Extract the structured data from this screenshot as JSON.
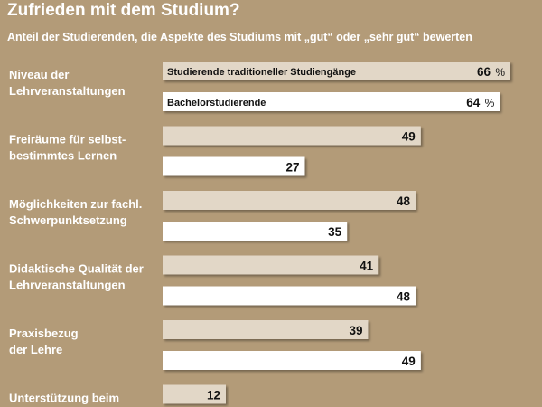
{
  "header": {
    "title": "Zufrieden mit dem Studium?",
    "subtitle": "Anteil der Studierenden, die Aspekte des Studiums mit „gut“ oder „sehr gut“ bewerten"
  },
  "colors": {
    "background": "#b39b78",
    "traditional_bar": "#e2d7c7",
    "bachelor_bar": "#ffffff"
  },
  "chart_data": {
    "type": "bar",
    "orientation": "horizontal",
    "title": "Zufrieden mit dem Studium?",
    "subtitle": "Anteil der Studierenden, die Aspekte des Studiums mit „gut“ oder „sehr gut“ bewerten",
    "unit": "%",
    "categories": [
      [
        "Niveau der",
        "Lehrveranstaltungen"
      ],
      [
        "Freiräume für selbst-",
        "bestimmtes Lernen"
      ],
      [
        "Möglichkeiten zur fachl.",
        "Schwerpunktsetzung"
      ],
      [
        "Didaktische Qualität der",
        "Lehrveranstaltungen"
      ],
      [
        "Praxisbezug",
        "der Lehre"
      ],
      [
        "Unterstützung beim",
        ""
      ]
    ],
    "series": [
      {
        "name": "Studierende traditioneller Studiengänge",
        "values": [
          66,
          49,
          48,
          41,
          39,
          12
        ]
      },
      {
        "name": "Bachelorstudierende",
        "values": [
          64,
          27,
          35,
          48,
          49,
          null
        ]
      }
    ],
    "xlim": [
      0,
      66
    ],
    "grid": false
  }
}
